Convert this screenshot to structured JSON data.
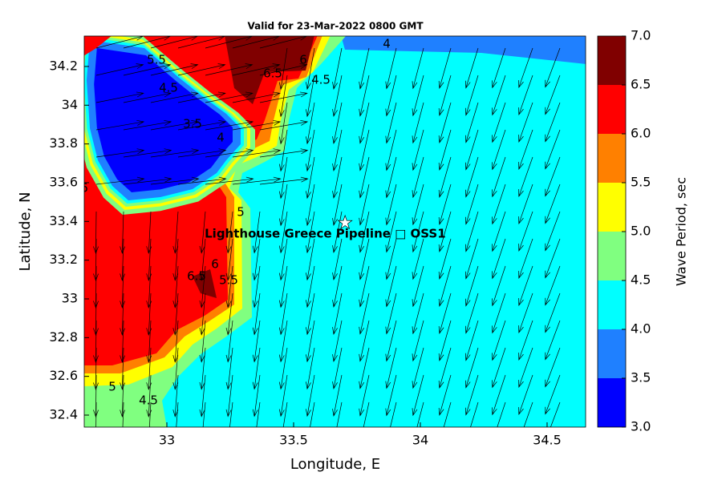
{
  "chart_data": {
    "type": "contour",
    "title": "Valid for 23-Mar-2022 0800 GMT",
    "xlabel": "Longitude, E",
    "ylabel": "Latitude, N",
    "xlim": [
      32.674,
      34.652
    ],
    "ylim": [
      32.338,
      34.357
    ],
    "xticks": [
      33,
      33.5,
      34,
      34.5
    ],
    "yticks": [
      32.4,
      32.6,
      32.8,
      33,
      33.2,
      33.4,
      33.6,
      33.8,
      34,
      34.2
    ],
    "colorbar": {
      "label": "Wave Period, sec",
      "levels": [
        {
          "value": 3,
          "label": "3.0"
        },
        {
          "value": 3.5,
          "label": "3.5"
        },
        {
          "value": 4,
          "label": "4.0"
        },
        {
          "value": 4.5,
          "label": "4.5"
        },
        {
          "value": 5,
          "label": "5.0"
        },
        {
          "value": 5.5,
          "label": "5.5"
        },
        {
          "value": 6,
          "label": "6.0"
        },
        {
          "value": 6.5,
          "label": "6.5"
        },
        {
          "value": 7,
          "label": "7.0"
        }
      ],
      "colors": [
        "#0000ff",
        "#1f80ff",
        "#00ffff",
        "#80ff80",
        "#ffff00",
        "#ff8000",
        "#ff0000",
        "#800000"
      ]
    },
    "marker": {
      "label": "Lighthouse Greece Pipeline □ OSS1",
      "lon": 33.703,
      "lat": 33.393
    },
    "contour_labels": [
      "4",
      "6.5",
      "6",
      "4.5",
      "5",
      "4.5",
      "6",
      "6.5",
      "5.5",
      "4.5",
      "3.5",
      "4",
      "5.5",
      "6",
      "5"
    ]
  }
}
